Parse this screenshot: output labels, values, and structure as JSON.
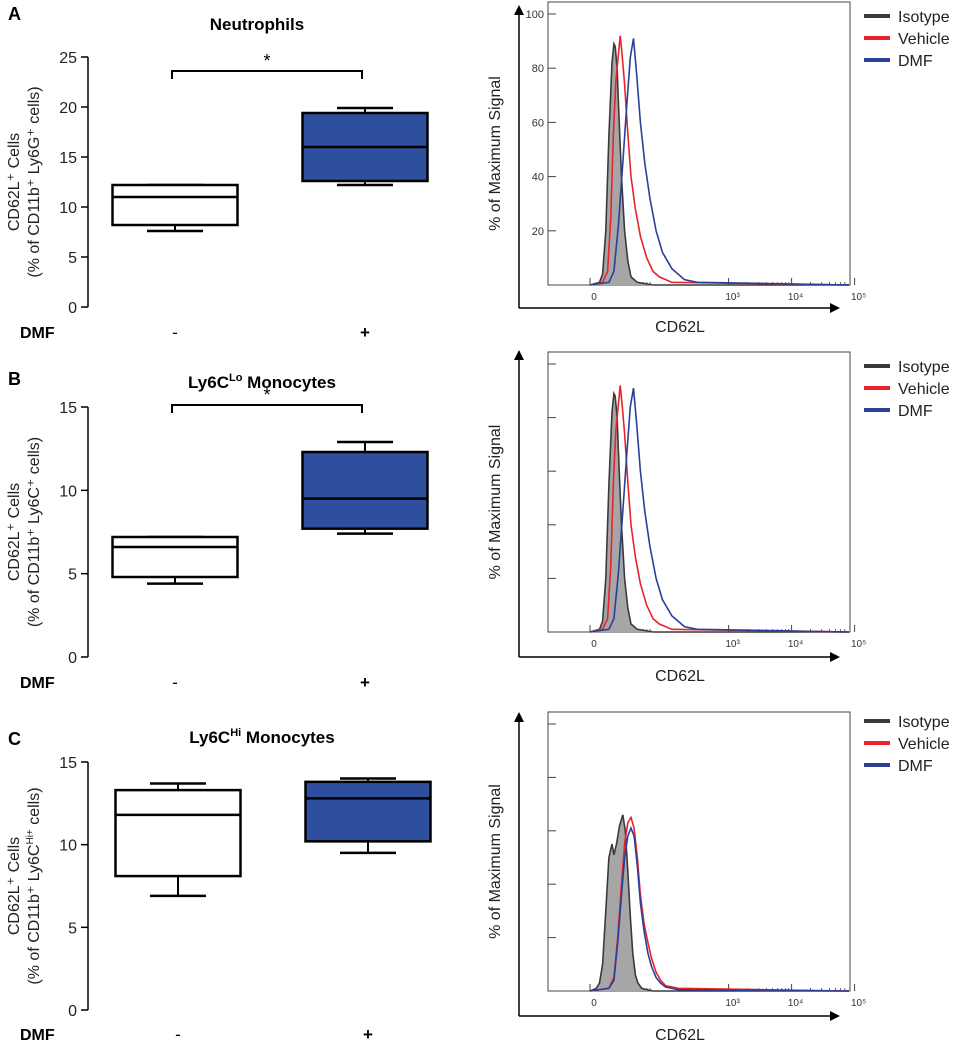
{
  "figure": {
    "colors": {
      "box_plus": "#2e4f9e",
      "box_minus": "#ffffff",
      "isotope_fill": "#a6a6a6",
      "isotype_line": "#3a3a3a",
      "vehicle": "#e8232a",
      "dmf": "#2b3f99"
    }
  },
  "chart_data": [
    {
      "type": "box",
      "panel_label": "A",
      "title": "Neutrophils",
      "ylabel_line1": "CD62L⁺ Cells",
      "ylabel_line2": "(% of CD11b⁺ Ly6G⁺ cells)",
      "ylim": [
        0,
        25
      ],
      "yticks": [
        0,
        5,
        10,
        15,
        20,
        25
      ],
      "group_label": "DMF",
      "categories": [
        "-",
        "+"
      ],
      "boxes": [
        {
          "category": "-",
          "min": 7.6,
          "q1": 8.2,
          "median": 11.0,
          "q3": 12.2,
          "max": 12.2
        },
        {
          "category": "+",
          "min": 12.2,
          "q1": 12.6,
          "median": 16.0,
          "q3": 19.4,
          "max": 19.9
        }
      ],
      "significance": "*"
    },
    {
      "type": "line",
      "panel_label": "A",
      "xlabel": "CD62L",
      "ylabel": "% of Maximum Signal",
      "ylim": [
        0,
        100
      ],
      "yticks": [
        20,
        40,
        60,
        80,
        100
      ],
      "show_ytick_labels": true,
      "xtick_labels": [
        "0",
        "10³",
        "10⁴",
        "10⁵"
      ],
      "legend": [
        "Isotype",
        "Vehicle",
        "DMF"
      ],
      "series": [
        {
          "name": "Isotype",
          "filled": true,
          "x": [
            0,
            0.15,
            0.2,
            0.25,
            0.3,
            0.35,
            0.38,
            0.4,
            0.43,
            0.46,
            0.5,
            0.55,
            0.6,
            0.65,
            0.75,
            1.0,
            5.0
          ],
          "y": [
            0,
            1,
            4,
            20,
            55,
            82,
            89,
            88,
            80,
            62,
            40,
            20,
            9,
            3,
            1,
            0,
            0
          ]
        },
        {
          "name": "Vehicle",
          "filled": false,
          "x": [
            0,
            0.2,
            0.28,
            0.33,
            0.37,
            0.41,
            0.45,
            0.48,
            0.51,
            0.55,
            0.6,
            0.65,
            0.72,
            0.8,
            0.9,
            1.0,
            1.1,
            1.3,
            5.0
          ],
          "y": [
            0,
            1,
            5,
            25,
            55,
            75,
            85,
            92,
            85,
            74,
            56,
            40,
            28,
            18,
            10,
            5,
            3,
            1,
            0
          ]
        },
        {
          "name": "DMF",
          "filled": false,
          "x": [
            0,
            0.3,
            0.38,
            0.45,
            0.52,
            0.58,
            0.64,
            0.69,
            0.74,
            0.8,
            0.87,
            0.95,
            1.05,
            1.15,
            1.3,
            1.5,
            1.7,
            5.0
          ],
          "y": [
            0,
            1,
            5,
            22,
            45,
            65,
            84,
            91,
            78,
            60,
            45,
            32,
            20,
            12,
            6,
            2,
            1,
            0
          ]
        }
      ]
    },
    {
      "type": "box",
      "panel_label": "B",
      "title": "Ly6C",
      "title_sup": "Lo",
      "title_rest": " Monocytes",
      "ylabel_line1": "CD62L⁺ Cells",
      "ylabel_line2": "(% of CD11b⁺ Ly6C⁺ cells)",
      "ylim": [
        0,
        15
      ],
      "yticks": [
        0,
        5,
        10,
        15
      ],
      "group_label": "DMF",
      "categories": [
        "-",
        "+"
      ],
      "boxes": [
        {
          "category": "-",
          "min": 4.4,
          "q1": 4.8,
          "median": 6.6,
          "q3": 7.2,
          "max": 7.2
        },
        {
          "category": "+",
          "min": 7.4,
          "q1": 7.7,
          "median": 9.5,
          "q3": 12.3,
          "max": 12.9
        }
      ],
      "significance": "*"
    },
    {
      "type": "line",
      "panel_label": "B",
      "xlabel": "CD62L",
      "ylabel": "% of Maximum Signal",
      "ylim": [
        0,
        100
      ],
      "yticks": [
        20,
        40,
        60,
        80,
        100
      ],
      "show_ytick_labels": false,
      "xtick_labels": [
        "0",
        "10³",
        "10⁴",
        "10⁵"
      ],
      "legend": [
        "Isotype",
        "Vehicle",
        "DMF"
      ],
      "series": [
        {
          "name": "Isotype",
          "filled": true,
          "x": [
            0,
            0.15,
            0.2,
            0.25,
            0.3,
            0.35,
            0.38,
            0.4,
            0.43,
            0.46,
            0.5,
            0.55,
            0.6,
            0.65,
            0.75,
            1.0,
            5.0
          ],
          "y": [
            0,
            1,
            4,
            20,
            55,
            82,
            89,
            88,
            80,
            62,
            40,
            20,
            9,
            3,
            1,
            0,
            0
          ]
        },
        {
          "name": "Vehicle",
          "filled": false,
          "x": [
            0,
            0.2,
            0.28,
            0.33,
            0.37,
            0.41,
            0.45,
            0.48,
            0.51,
            0.55,
            0.6,
            0.65,
            0.72,
            0.8,
            0.9,
            1.0,
            1.1,
            1.3,
            5.0
          ],
          "y": [
            0,
            1,
            5,
            25,
            55,
            75,
            85,
            92,
            85,
            74,
            56,
            40,
            28,
            18,
            10,
            5,
            3,
            1,
            0
          ]
        },
        {
          "name": "DMF",
          "filled": false,
          "x": [
            0,
            0.3,
            0.38,
            0.45,
            0.52,
            0.58,
            0.64,
            0.69,
            0.74,
            0.8,
            0.87,
            0.95,
            1.05,
            1.15,
            1.3,
            1.5,
            1.7,
            5.0
          ],
          "y": [
            0,
            1,
            5,
            22,
            45,
            65,
            84,
            91,
            78,
            60,
            45,
            32,
            20,
            12,
            6,
            2,
            1,
            0
          ]
        }
      ]
    },
    {
      "type": "box",
      "panel_label": "C",
      "title": "Ly6C",
      "title_sup": "Hi",
      "title_rest": " Monocytes",
      "ylabel_line1": "CD62L⁺ Cells",
      "ylabel_line2": "(% of CD11b⁺ Ly6C",
      "ylabel_sup": "Hi+",
      "ylabel_end": " cells)",
      "ylim": [
        0,
        15
      ],
      "yticks": [
        0,
        5,
        10,
        15
      ],
      "group_label": "DMF",
      "categories": [
        "-",
        "+"
      ],
      "boxes": [
        {
          "category": "-",
          "min": 6.9,
          "q1": 8.1,
          "median": 11.8,
          "q3": 13.3,
          "max": 13.7
        },
        {
          "category": "+",
          "min": 9.5,
          "q1": 10.2,
          "median": 12.8,
          "q3": 13.8,
          "max": 14.0
        }
      ],
      "significance": ""
    },
    {
      "type": "line",
      "panel_label": "C",
      "xlabel": "CD62L",
      "ylabel": "% of Maximum Signal",
      "ylim": [
        0,
        100
      ],
      "yticks": [
        20,
        40,
        60,
        80,
        100
      ],
      "show_ytick_labels": false,
      "xtick_labels": [
        "0",
        "10³",
        "10⁴",
        "10⁵"
      ],
      "legend": [
        "Isotype",
        "Vehicle",
        "DMF"
      ],
      "series": [
        {
          "name": "Isotype",
          "filled": true,
          "x": [
            0,
            0.1,
            0.15,
            0.2,
            0.25,
            0.3,
            0.35,
            0.38,
            0.42,
            0.47,
            0.52,
            0.56,
            0.6,
            0.64,
            0.68,
            0.72,
            0.76,
            0.82,
            0.9,
            1.0,
            5.0
          ],
          "y": [
            0,
            1,
            3,
            10,
            30,
            50,
            55,
            51,
            55,
            62,
            66,
            60,
            45,
            28,
            14,
            6,
            3,
            1,
            0.5,
            0,
            0
          ]
        },
        {
          "name": "Vehicle",
          "filled": false,
          "x": [
            0,
            0.3,
            0.38,
            0.44,
            0.5,
            0.55,
            0.6,
            0.65,
            0.7,
            0.75,
            0.8,
            0.86,
            0.92,
            0.98,
            1.05,
            1.12,
            1.2,
            1.4,
            5.0
          ],
          "y": [
            0,
            1,
            5,
            20,
            40,
            55,
            63,
            65,
            61,
            50,
            36,
            25,
            18,
            12,
            7,
            4,
            2,
            1,
            0
          ]
        },
        {
          "name": "DMF",
          "filled": false,
          "x": [
            0,
            0.3,
            0.38,
            0.44,
            0.5,
            0.55,
            0.6,
            0.65,
            0.7,
            0.75,
            0.8,
            0.86,
            0.92,
            0.98,
            1.05,
            1.12,
            1.2,
            1.4,
            5.0
          ],
          "y": [
            0,
            1,
            4,
            18,
            36,
            50,
            58,
            61,
            58,
            47,
            33,
            22,
            14,
            9,
            5,
            3,
            1.5,
            0.5,
            0
          ]
        }
      ]
    }
  ]
}
